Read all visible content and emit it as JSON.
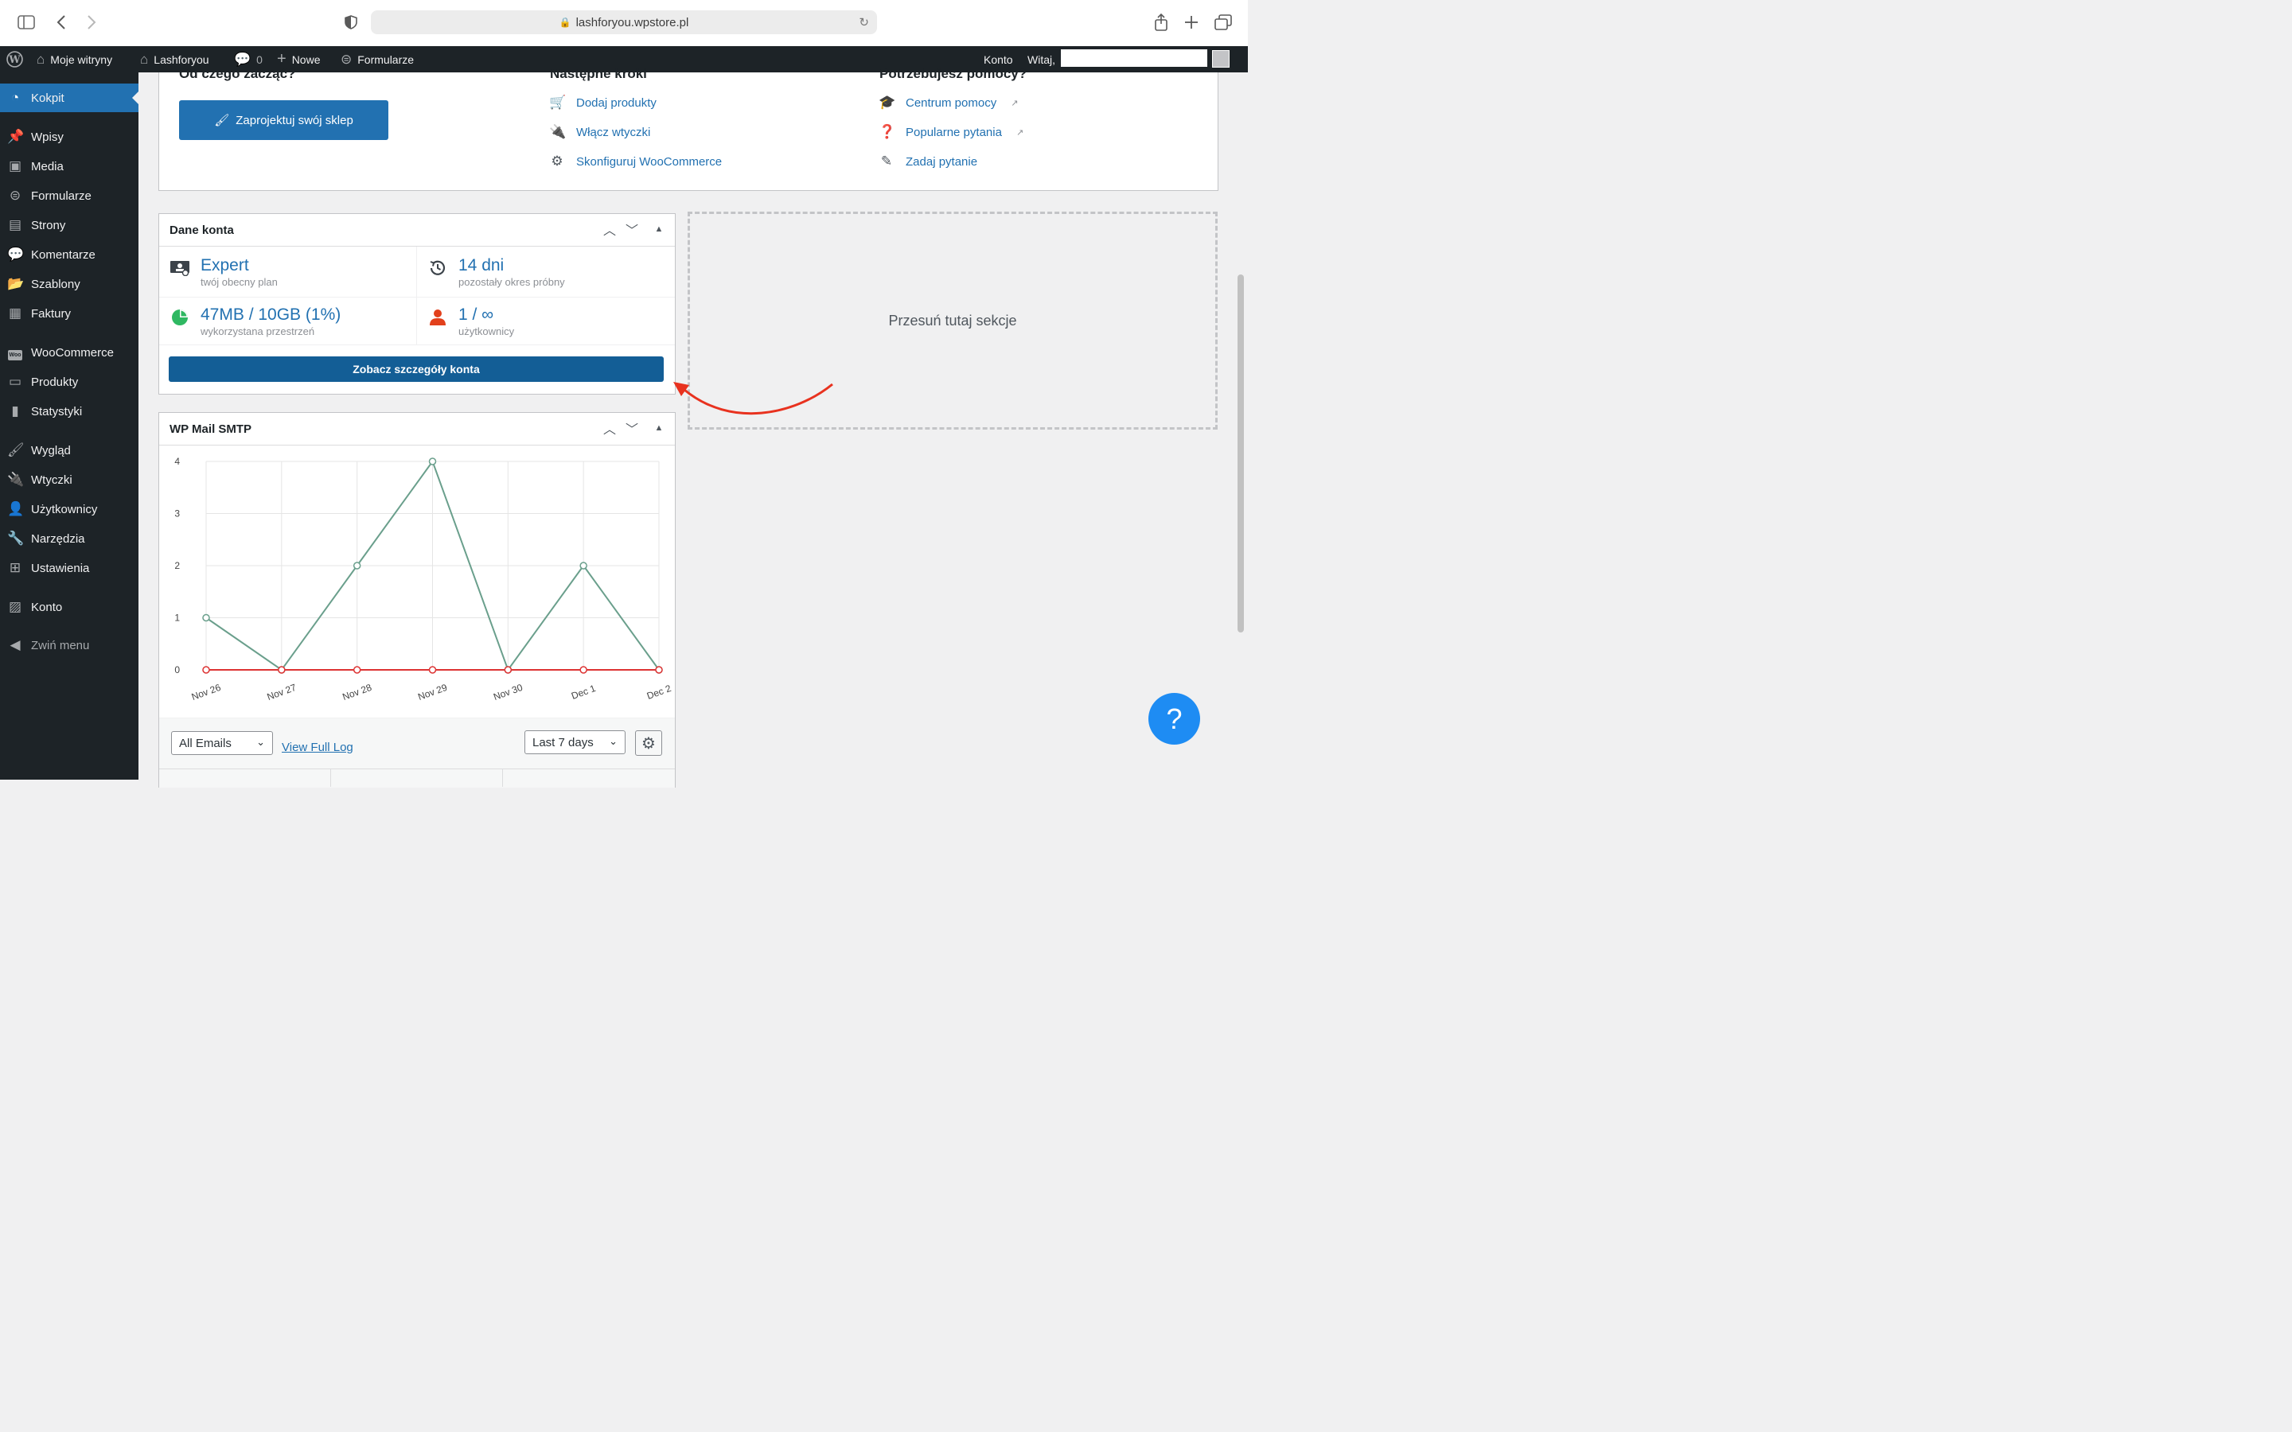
{
  "browser": {
    "url": "lashforyou.wpstore.pl"
  },
  "adminbar": {
    "my_sites": "Moje witryny",
    "site_name": "Lashforyou",
    "comments_count": "0",
    "new_label": "Nowe",
    "forms_label": "Formularze",
    "account_label": "Konto",
    "greeting": "Witaj,"
  },
  "sidebar": {
    "items": [
      {
        "label": "Kokpit",
        "icon": "dashboard-icon"
      },
      {
        "label": "Wpisy",
        "icon": "pin-icon"
      },
      {
        "label": "Media",
        "icon": "media-icon"
      },
      {
        "label": "Formularze",
        "icon": "forms-icon"
      },
      {
        "label": "Strony",
        "icon": "pages-icon"
      },
      {
        "label": "Komentarze",
        "icon": "comment-icon"
      },
      {
        "label": "Szablony",
        "icon": "folder-icon"
      },
      {
        "label": "Faktury",
        "icon": "invoice-icon"
      },
      {
        "label": "WooCommerce",
        "icon": "woocommerce-icon"
      },
      {
        "label": "Produkty",
        "icon": "products-icon"
      },
      {
        "label": "Statystyki",
        "icon": "stats-icon"
      },
      {
        "label": "Wygląd",
        "icon": "brush-icon"
      },
      {
        "label": "Wtyczki",
        "icon": "plugin-icon"
      },
      {
        "label": "Użytkownicy",
        "icon": "users-icon"
      },
      {
        "label": "Narzędzia",
        "icon": "wrench-icon"
      },
      {
        "label": "Ustawienia",
        "icon": "settings-icon"
      },
      {
        "label": "Konto",
        "icon": "account-icon"
      },
      {
        "label": "Zwiń menu",
        "icon": "collapse-icon"
      }
    ]
  },
  "welcome": {
    "col1_heading": "Od czego zacząć?",
    "design_button": "Zaprojektuj swój sklep",
    "col2_heading": "Następne kroki",
    "next_steps": [
      "Dodaj produkty",
      "Włącz wtyczki",
      "Skonfiguruj WooCommerce"
    ],
    "col3_heading": "Potrzebujesz pomocy?",
    "help_links": [
      "Centrum pomocy",
      "Popularne pytania",
      "Zadaj pytanie"
    ]
  },
  "account_box": {
    "title": "Dane konta",
    "plan_value": "Expert",
    "plan_label": "twój obecny plan",
    "trial_value": "14 dni",
    "trial_label": "pozostały okres próbny",
    "storage_value": "47MB / 10GB (1%)",
    "storage_label": "wykorzystana przestrzeń",
    "users_value": "1 / ∞",
    "users_label": "użytkownicy",
    "details_button": "Zobacz szczegóły konta"
  },
  "dropzone": {
    "text": "Przesuń tutaj sekcje"
  },
  "smtp_box": {
    "title": "WP Mail SMTP",
    "filter_selected": "All Emails",
    "view_log": "View Full Log",
    "period_selected": "Last 7 days"
  },
  "chart_data": {
    "type": "line",
    "categories": [
      "Nov 26",
      "Nov 27",
      "Nov 28",
      "Nov 29",
      "Nov 30",
      "Dec 1",
      "Dec 2"
    ],
    "series": [
      {
        "color": "#6a9f8c",
        "values": [
          1,
          0,
          2,
          4,
          0,
          2,
          0
        ]
      },
      {
        "color": "#dd3333",
        "values": [
          0,
          0,
          0,
          0,
          0,
          0,
          0
        ]
      }
    ],
    "yticks": [
      0,
      1,
      2,
      3,
      4
    ],
    "ylim": [
      0,
      4
    ],
    "grid": true,
    "legend": "none"
  },
  "colors": {
    "wp_blue": "#2271b1",
    "wp_dark": "#1d2327",
    "arrow_red": "#e8321f"
  }
}
